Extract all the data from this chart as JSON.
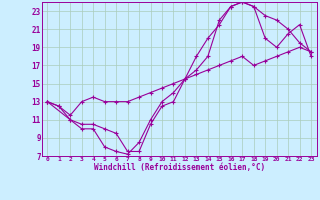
{
  "xlabel": "Windchill (Refroidissement éolien,°C)",
  "background_color": "#cceeff",
  "grid_color": "#aaccbb",
  "line_color": "#990099",
  "xlim": [
    -0.5,
    23.5
  ],
  "ylim": [
    7,
    24
  ],
  "xticks": [
    0,
    1,
    2,
    3,
    4,
    5,
    6,
    7,
    8,
    9,
    10,
    11,
    12,
    13,
    14,
    15,
    16,
    17,
    18,
    19,
    20,
    21,
    22,
    23
  ],
  "yticks": [
    7,
    9,
    11,
    13,
    15,
    17,
    19,
    21,
    23
  ],
  "curve1_x": [
    0,
    1,
    2,
    3,
    4,
    5,
    6,
    7,
    8,
    9,
    10,
    11,
    12,
    13,
    14,
    15,
    16,
    17,
    18,
    19,
    20,
    21,
    22,
    23
  ],
  "curve1_y": [
    13,
    12.5,
    11,
    10,
    10,
    8,
    7.5,
    7.2,
    8.5,
    11,
    13,
    14,
    15.5,
    16.5,
    18,
    22,
    23.5,
    24,
    23.5,
    22.5,
    22,
    21,
    19.5,
    18.5
  ],
  "curve2_x": [
    0,
    2,
    3,
    4,
    5,
    6,
    7,
    8,
    9,
    10,
    11,
    12,
    13,
    14,
    15,
    16,
    17,
    18,
    19,
    20,
    21,
    22,
    23
  ],
  "curve2_y": [
    13,
    11,
    10.5,
    10.5,
    10,
    9.5,
    7.5,
    7.5,
    10.5,
    12.5,
    13,
    15.5,
    18,
    20,
    21.5,
    23.5,
    24,
    23.5,
    20,
    19,
    20.5,
    21.5,
    18
  ],
  "curve3_x": [
    0,
    1,
    2,
    3,
    4,
    5,
    6,
    7,
    8,
    9,
    10,
    11,
    12,
    13,
    14,
    15,
    16,
    17,
    18,
    19,
    20,
    21,
    22,
    23
  ],
  "curve3_y": [
    13,
    12.5,
    11.5,
    13,
    13.5,
    13,
    13,
    13,
    13.5,
    14,
    14.5,
    15,
    15.5,
    16,
    16.5,
    17,
    17.5,
    18,
    17,
    17.5,
    18,
    18.5,
    19,
    18.5
  ]
}
